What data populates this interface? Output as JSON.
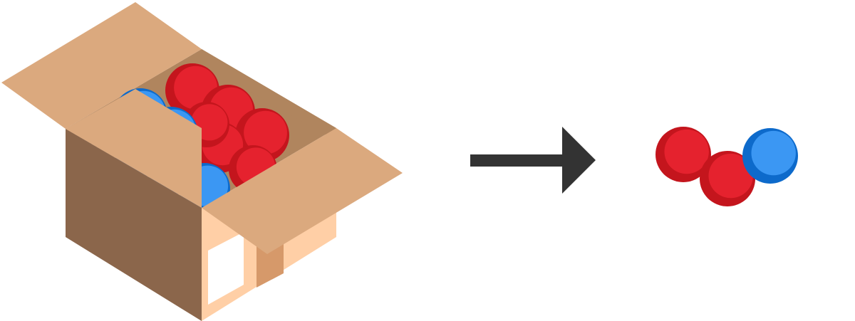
{
  "colors": {
    "background": "#ffffff",
    "box_flap": "#DBA97E",
    "box_dark_side": "#8B664B",
    "box_light_side": "#FFCFA6",
    "box_inner_back": "#B0855E",
    "box_tape": "#D6996A",
    "label": "#ffffff",
    "arrow": "#333333",
    "ball_red": "#E5222E",
    "ball_red_shade": "#C4151D",
    "ball_blue": "#3B97F3",
    "ball_blue_shade": "#0D6ACB"
  },
  "box": {
    "icon": "open-cardboard-box-icon",
    "contents": {
      "red_balls": 6,
      "blue_balls": 5
    }
  },
  "arrow": {
    "icon": "right-arrow-icon"
  },
  "sample": {
    "balls": [
      "red",
      "red",
      "blue"
    ]
  }
}
